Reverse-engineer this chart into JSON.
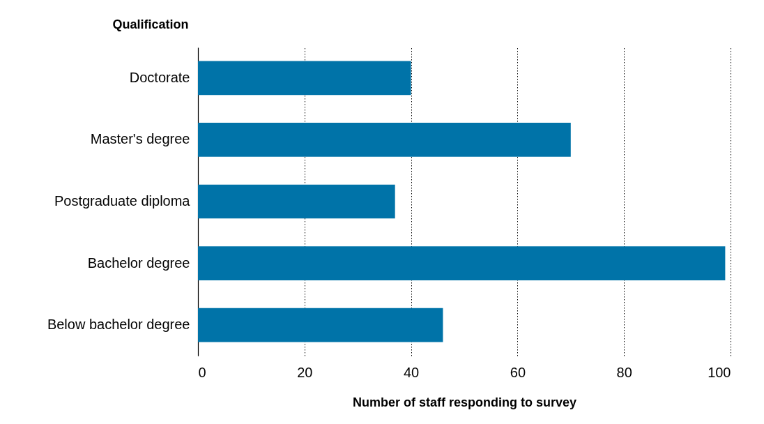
{
  "chart_data": {
    "type": "bar",
    "orientation": "horizontal",
    "ylabel": "Qualification",
    "xlabel": "Number of staff responding to survey",
    "categories": [
      "Doctorate",
      "Master's degree",
      "Postgraduate diploma",
      "Bachelor degree",
      "Below bachelor degree"
    ],
    "values": [
      40,
      70,
      37,
      99,
      46
    ],
    "color": "#0073a8",
    "xlim": [
      0,
      100
    ],
    "xticks": [
      0,
      20,
      40,
      60,
      80,
      100
    ],
    "grid": "x"
  }
}
